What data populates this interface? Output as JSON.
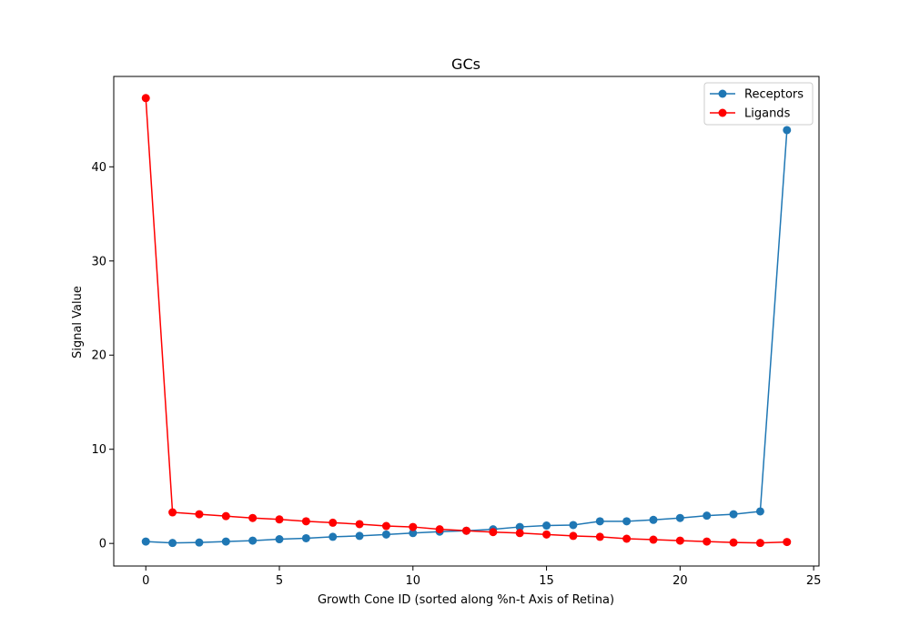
{
  "chart_data": {
    "type": "line",
    "title": "GCs",
    "xlabel": "Growth Cone ID (sorted along %n-t Axis of Retina)",
    "ylabel": "Signal Value",
    "xlim": [
      -1.2,
      25.2
    ],
    "ylim": [
      -2.4,
      49.6
    ],
    "xticks": [
      0,
      5,
      10,
      15,
      20,
      25
    ],
    "yticks": [
      0,
      10,
      20,
      30,
      40
    ],
    "grid": false,
    "legend_position": "top-right",
    "x": [
      0,
      1,
      2,
      3,
      4,
      5,
      6,
      7,
      8,
      9,
      10,
      11,
      12,
      13,
      14,
      15,
      16,
      17,
      18,
      19,
      20,
      21,
      22,
      23,
      24
    ],
    "series": [
      {
        "name": "Receptors",
        "color": "#1f77b4",
        "marker": "circle",
        "values": [
          0.2,
          0.05,
          0.1,
          0.2,
          0.3,
          0.45,
          0.55,
          0.7,
          0.8,
          0.95,
          1.1,
          1.25,
          1.35,
          1.5,
          1.75,
          1.9,
          1.95,
          2.35,
          2.35,
          2.5,
          2.7,
          2.95,
          3.1,
          3.4,
          43.9
        ]
      },
      {
        "name": "Ligands",
        "color": "#ff0000",
        "marker": "circle",
        "values": [
          47.3,
          3.3,
          3.1,
          2.9,
          2.7,
          2.55,
          2.35,
          2.2,
          2.05,
          1.85,
          1.75,
          1.5,
          1.35,
          1.2,
          1.1,
          0.95,
          0.8,
          0.7,
          0.5,
          0.4,
          0.3,
          0.2,
          0.1,
          0.05,
          0.15
        ]
      }
    ]
  }
}
